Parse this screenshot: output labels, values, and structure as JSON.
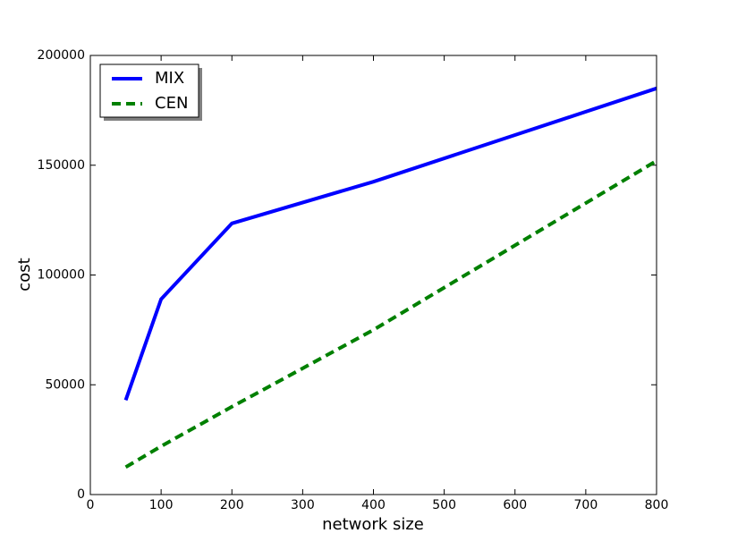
{
  "chart_data": {
    "type": "line",
    "x_label": "network size",
    "y_label": "cost",
    "x": [
      50,
      100,
      200,
      400,
      800
    ],
    "series": [
      {
        "name": "MIX",
        "color": "#0000ff",
        "linestyle": "solid",
        "values": [
          43000,
          89000,
          123500,
          142500,
          185000
        ]
      },
      {
        "name": "CEN",
        "color": "#008000",
        "linestyle": "dashed",
        "values": [
          12500,
          22000,
          40000,
          75000,
          152000
        ]
      }
    ],
    "xlim": [
      0,
      800
    ],
    "xticks": [
      0,
      100,
      200,
      300,
      400,
      500,
      600,
      700,
      800
    ],
    "ylim": [
      0,
      200000
    ],
    "yticks": [
      0,
      50000,
      100000,
      150000,
      200000
    ],
    "grid": false,
    "legend": "upper left"
  }
}
